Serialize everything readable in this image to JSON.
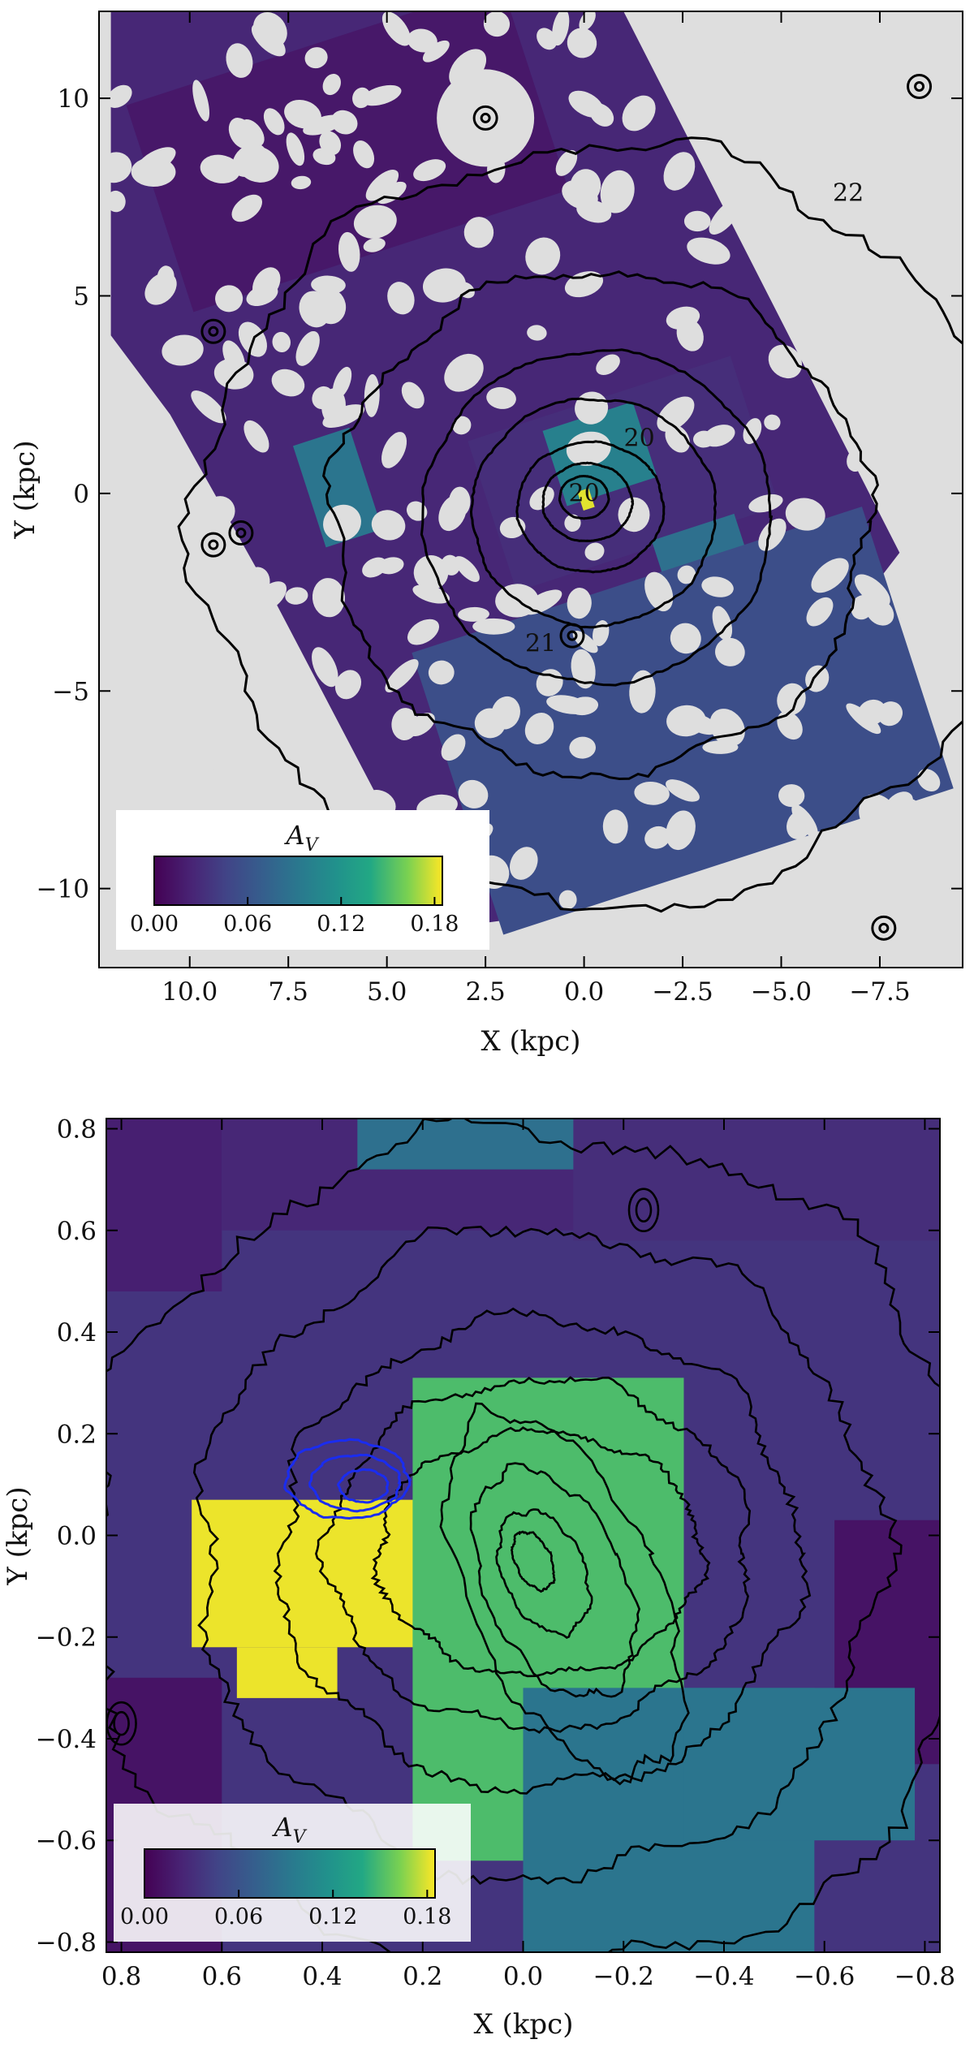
{
  "chart_data": [
    {
      "type": "heatmap",
      "panel": "top",
      "title": "",
      "xlabel": "X (kpc)",
      "ylabel": "Y (kpc)",
      "xlim": [
        12.3,
        -9.6
      ],
      "ylim": [
        -12.0,
        12.2
      ],
      "x_ticks": [
        10.0,
        7.5,
        5.0,
        2.5,
        0.0,
        -2.5,
        -5.0,
        -7.5
      ],
      "x_tick_labels": [
        "10.0",
        "7.5",
        "5.0",
        "2.5",
        "0.0",
        "−2.5",
        "−5.0",
        "−7.5"
      ],
      "y_ticks": [
        10,
        5,
        0,
        -5,
        -10
      ],
      "y_tick_labels": [
        "10",
        "5",
        "0",
        "−5",
        "−10"
      ],
      "colorbar": {
        "label": "A_V",
        "label_display": "A",
        "label_sub": "V",
        "range": [
          0.0,
          0.185
        ],
        "ticks": [
          0.0,
          0.06,
          0.12,
          0.18
        ],
        "tick_labels": [
          "0.00",
          "0.06",
          "0.12",
          "0.18"
        ],
        "location": "lower-left"
      },
      "contour_labels": [
        {
          "text": "22",
          "x": -6.7,
          "y": 7.4
        },
        {
          "text": "20",
          "x": -1.4,
          "y": 1.2
        },
        {
          "text": "20",
          "x": 0.0,
          "y": -0.2
        },
        {
          "text": "21",
          "x": 1.1,
          "y": -4.0
        }
      ],
      "regions_AV": [
        {
          "x": [
            11.0,
            1.0
          ],
          "y": [
            6.0,
            11.5
          ],
          "av": 0.015
        },
        {
          "x": [
            2.5,
            -4.5
          ],
          "y": [
            -1.5,
            2.5
          ],
          "av": 0.03
        },
        {
          "x": [
            7.0,
            5.5
          ],
          "y": [
            -1.2,
            1.5
          ],
          "av": 0.09
        },
        {
          "x": [
            0.8,
            -1.6
          ],
          "y": [
            0.0,
            2.0
          ],
          "av": 0.1
        },
        {
          "x": [
            -2.0,
            -4.2
          ],
          "y": [
            -3.0,
            -0.8
          ],
          "av": 0.085
        },
        {
          "x": [
            3.5,
            -8.5
          ],
          "y": [
            -9.5,
            -2.0
          ],
          "av": 0.055
        },
        {
          "x": [
            0.1,
            -0.2
          ],
          "y": [
            -0.4,
            0.1
          ],
          "av": 0.18
        }
      ]
    },
    {
      "type": "heatmap",
      "panel": "bottom",
      "title": "",
      "xlabel": "X (kpc)",
      "ylabel": "Y (kpc)",
      "xlim": [
        0.83,
        -0.83
      ],
      "ylim": [
        -0.82,
        0.82
      ],
      "x_ticks": [
        0.8,
        0.6,
        0.4,
        0.2,
        0.0,
        -0.2,
        -0.4,
        -0.6,
        -0.8
      ],
      "x_tick_labels": [
        "0.8",
        "0.6",
        "0.4",
        "0.2",
        "0.0",
        "−0.2",
        "−0.4",
        "−0.6",
        "−0.8"
      ],
      "y_ticks": [
        0.8,
        0.6,
        0.4,
        0.2,
        0.0,
        -0.2,
        -0.4,
        -0.6,
        -0.8
      ],
      "y_tick_labels": [
        "0.8",
        "0.6",
        "0.4",
        "0.2",
        "0.0",
        "−0.2",
        "−0.4",
        "−0.6",
        "−0.8"
      ],
      "colorbar": {
        "label": "A_V",
        "label_display": "A",
        "label_sub": "V",
        "range": [
          0.0,
          0.185
        ],
        "ticks": [
          0.0,
          0.06,
          0.12,
          0.18
        ],
        "tick_labels": [
          "0.00",
          "0.06",
          "0.12",
          "0.18"
        ],
        "location": "lower-left"
      },
      "background_AV": 0.035,
      "regions_AV": [
        {
          "x": [
            0.83,
            0.6
          ],
          "y": [
            0.48,
            0.82
          ],
          "av": 0.02
        },
        {
          "x": [
            0.6,
            -0.1
          ],
          "y": [
            0.6,
            0.82
          ],
          "av": 0.025
        },
        {
          "x": [
            0.33,
            -0.13
          ],
          "y": [
            0.72,
            0.82
          ],
          "av": 0.085
        },
        {
          "x": [
            -0.1,
            -0.83
          ],
          "y": [
            0.58,
            0.82
          ],
          "av": 0.03
        },
        {
          "x": [
            0.83,
            0.6
          ],
          "y": [
            -0.82,
            -0.28
          ],
          "av": 0.012
        },
        {
          "x": [
            -0.62,
            -0.83
          ],
          "y": [
            -0.45,
            0.03
          ],
          "av": 0.012
        },
        {
          "x": [
            0.66,
            0.2
          ],
          "y": [
            -0.22,
            0.07
          ],
          "av": 0.182
        },
        {
          "x": [
            0.57,
            0.37
          ],
          "y": [
            -0.32,
            -0.22
          ],
          "av": 0.182
        },
        {
          "x": [
            0.22,
            -0.32
          ],
          "y": [
            -0.64,
            0.31
          ],
          "av": 0.15
        },
        {
          "x": [
            0.0,
            -0.58
          ],
          "y": [
            -0.82,
            -0.3
          ],
          "av": 0.09
        },
        {
          "x": [
            -0.32,
            -0.78
          ],
          "y": [
            -0.6,
            -0.3
          ],
          "av": 0.09
        }
      ],
      "blue_contour_center": {
        "x": 0.35,
        "y": 0.11
      }
    }
  ]
}
